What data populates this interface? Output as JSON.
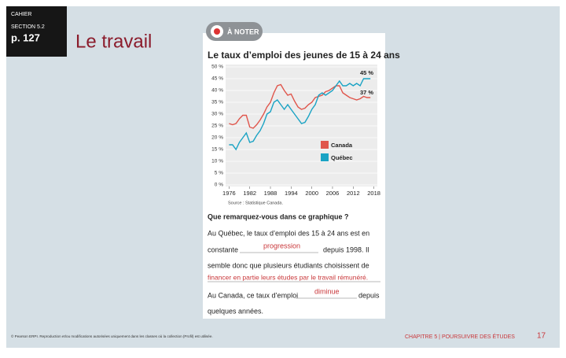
{
  "sidebar": {
    "label": "CAHIER",
    "section": "SECTION 5.2",
    "page": "p. 127"
  },
  "title": "Le travail",
  "badge": "À NOTER",
  "chart_data": {
    "type": "line",
    "title": "Le taux d’emploi des jeunes de 15 à 24 ans",
    "x": [
      1976,
      1977,
      1978,
      1979,
      1980,
      1981,
      1982,
      1983,
      1984,
      1985,
      1986,
      1987,
      1988,
      1989,
      1990,
      1991,
      1992,
      1993,
      1994,
      1995,
      1996,
      1997,
      1998,
      1999,
      2000,
      2001,
      2002,
      2003,
      2004,
      2005,
      2006,
      2007,
      2008,
      2009,
      2010,
      2011,
      2012,
      2013,
      2014,
      2015,
      2016,
      2017
    ],
    "series": [
      {
        "name": "Canada",
        "color": "#e0564c",
        "values": [
          26,
          25.5,
          26,
          28,
          29.5,
          29.5,
          24.5,
          24,
          25.5,
          27.5,
          30,
          33,
          35,
          39,
          42,
          42.5,
          40,
          38,
          38.5,
          35.5,
          33,
          32,
          32.5,
          34,
          35,
          37,
          37.5,
          38,
          39.5,
          40,
          41,
          42,
          42,
          39,
          38,
          37,
          36.5,
          36,
          36.5,
          37.5,
          37,
          37
        ]
      },
      {
        "name": "Québec",
        "color": "#1aa3c4",
        "values": [
          17,
          17,
          15,
          18,
          20,
          22,
          18,
          18.5,
          21,
          23,
          26,
          30,
          31,
          35,
          36,
          34,
          32,
          34,
          32,
          30,
          28,
          26,
          26.5,
          29,
          32,
          34,
          38,
          39,
          38,
          39,
          40,
          42,
          44,
          42,
          42,
          43,
          42,
          43,
          42,
          45,
          45,
          45
        ]
      }
    ],
    "annotations": [
      "45 %",
      "37 %"
    ],
    "xlim": [
      1975,
      2019
    ],
    "xticks": [
      1976,
      1982,
      1988,
      1994,
      2000,
      2006,
      2012,
      2018
    ],
    "ylim": [
      0,
      50
    ],
    "yticks": [
      {
        "value": 0,
        "label": "0 %"
      },
      {
        "value": 5,
        "label": "5 %"
      },
      {
        "value": 10,
        "label": "10 %"
      },
      {
        "value": 15,
        "label": "15 %"
      },
      {
        "value": 20,
        "label": "20 %"
      },
      {
        "value": 25,
        "label": "25 %"
      },
      {
        "value": 30,
        "label": "30 %"
      },
      {
        "value": 35,
        "label": "35 %"
      },
      {
        "value": 40,
        "label": "40 %"
      },
      {
        "value": 45,
        "label": "45 %"
      },
      {
        "value": 50,
        "label": "50 %"
      }
    ],
    "grid": true,
    "source": "Source : Statistique Canada."
  },
  "card": {
    "question": "Que remarquez-vous dans ce graphique ?",
    "p1": [
      "Au Québec, le taux d’emploi des 15 à 24 ans est en",
      "constante",
      "depuis 1998. Il",
      "semble donc que plusieurs étudiants choisissent de"
    ],
    "answer1": "progression",
    "answer2": "financer en partie leurs études par le travail rémunéré.",
    "p2": [
      "Au Canada, ce taux d’emploi",
      "depuis",
      "quelques années."
    ],
    "answer3": "diminue"
  },
  "footer": {
    "copyright": "© Pearson ERPI. Reproduction et/ou modifications autorisées uniquement dans les classes où la collection (Profil) est utilisée.",
    "chapter": "CHAPITRE 5 | POURSUIVRE DES ÉTUDES",
    "page": "17"
  }
}
